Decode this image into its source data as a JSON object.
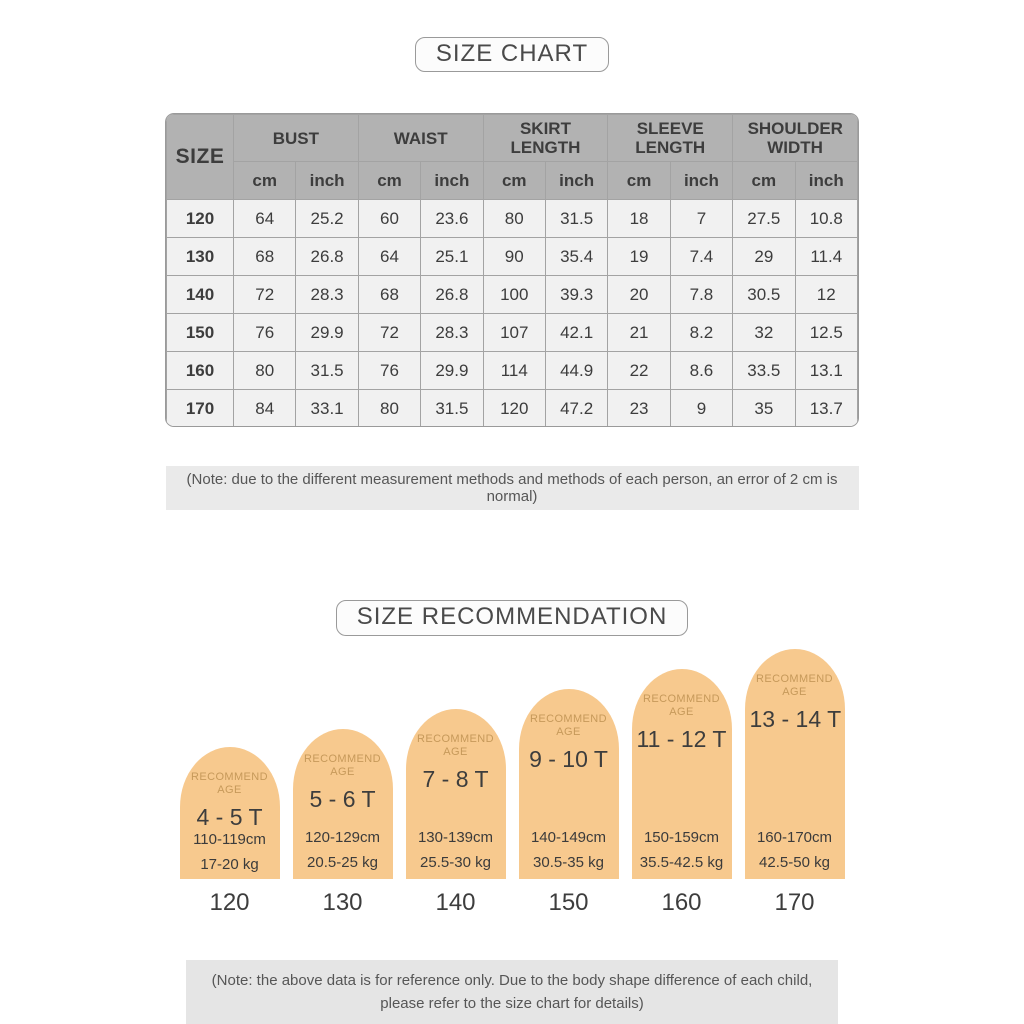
{
  "size_chart": {
    "title": "SIZE CHART",
    "table": {
      "size_header": "SIZE",
      "groups": [
        "BUST",
        "WAIST",
        "SKIRT LENGTH",
        "SLEEVE LENGTH",
        "SHOULDER WIDTH"
      ],
      "units": [
        "cm",
        "inch"
      ],
      "rows": [
        {
          "size": "120",
          "values": [
            "64",
            "25.2",
            "60",
            "23.6",
            "80",
            "31.5",
            "18",
            "7",
            "27.5",
            "10.8"
          ]
        },
        {
          "size": "130",
          "values": [
            "68",
            "26.8",
            "64",
            "25.1",
            "90",
            "35.4",
            "19",
            "7.4",
            "29",
            "11.4"
          ]
        },
        {
          "size": "140",
          "values": [
            "72",
            "28.3",
            "68",
            "26.8",
            "100",
            "39.3",
            "20",
            "7.8",
            "30.5",
            "12"
          ]
        },
        {
          "size": "150",
          "values": [
            "76",
            "29.9",
            "72",
            "28.3",
            "107",
            "42.1",
            "21",
            "8.2",
            "32",
            "12.5"
          ]
        },
        {
          "size": "160",
          "values": [
            "80",
            "31.5",
            "76",
            "29.9",
            "114",
            "44.9",
            "22",
            "8.6",
            "33.5",
            "13.1"
          ]
        },
        {
          "size": "170",
          "values": [
            "84",
            "33.1",
            "80",
            "31.5",
            "120",
            "47.2",
            "23",
            "9",
            "35",
            "13.7"
          ]
        }
      ]
    },
    "note": "(Note: due to the different measurement methods and methods of each person, an error of 2 cm is normal)"
  },
  "size_recommendation": {
    "title": "SIZE RECOMMENDATION",
    "recommend_age_label": "RECOMMEND AGE",
    "items": [
      {
        "size": "120",
        "age": "4 - 5 T",
        "height": "110-119cm",
        "weight": "17-20 kg"
      },
      {
        "size": "130",
        "age": "5 - 6 T",
        "height": "120-129cm",
        "weight": "20.5-25 kg"
      },
      {
        "size": "140",
        "age": "7 - 8 T",
        "height": "130-139cm",
        "weight": "25.5-30 kg"
      },
      {
        "size": "150",
        "age": "9 - 10 T",
        "height": "140-149cm",
        "weight": "30.5-35 kg"
      },
      {
        "size": "160",
        "age": "11 - 12 T",
        "height": "150-159cm",
        "weight": "35.5-42.5 kg"
      },
      {
        "size": "170",
        "age": "13 - 14 T",
        "height": "160-170cm",
        "weight": "42.5-50 kg"
      }
    ],
    "note_line1": "(Note: the above data is for reference only. Due to the body shape difference of each child,",
    "note_line2": "please refer to the size chart for details)"
  },
  "colors": {
    "arch_fill": "#f7c98e",
    "recommend_age_text": "#c6995a",
    "table_header_bg": "#b2b2b2",
    "table_body_bg": "#f1f1f1",
    "note_bg": "#eaeaea",
    "text_dark": "#3d3d3d"
  }
}
